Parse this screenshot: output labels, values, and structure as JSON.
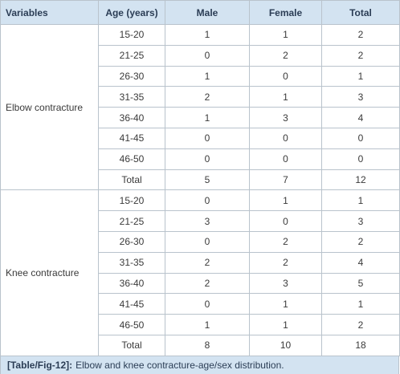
{
  "table": {
    "header": [
      "Variables",
      "Age (years)",
      "Male",
      "Female",
      "Total"
    ],
    "groups": [
      {
        "label": "Elbow contracture",
        "rows": [
          [
            "15-20",
            1,
            1,
            2
          ],
          [
            "21-25",
            0,
            2,
            2
          ],
          [
            "26-30",
            1,
            0,
            1
          ],
          [
            "31-35",
            2,
            1,
            3
          ],
          [
            "36-40",
            1,
            3,
            4
          ],
          [
            "41-45",
            0,
            0,
            0
          ],
          [
            "46-50",
            0,
            0,
            0
          ],
          [
            "Total",
            5,
            7,
            12
          ]
        ]
      },
      {
        "label": "Knee contracture",
        "rows": [
          [
            "15-20",
            0,
            1,
            1
          ],
          [
            "21-25",
            3,
            0,
            3
          ],
          [
            "26-30",
            0,
            2,
            2
          ],
          [
            "31-35",
            2,
            2,
            4
          ],
          [
            "36-40",
            2,
            3,
            5
          ],
          [
            "41-45",
            0,
            1,
            1
          ],
          [
            "46-50",
            1,
            1,
            2
          ],
          [
            "Total",
            8,
            10,
            18
          ]
        ]
      }
    ],
    "caption": {
      "label": "[Table/Fig-12]:",
      "text": "Elbow and knee contracture-age/sex distribution."
    }
  }
}
